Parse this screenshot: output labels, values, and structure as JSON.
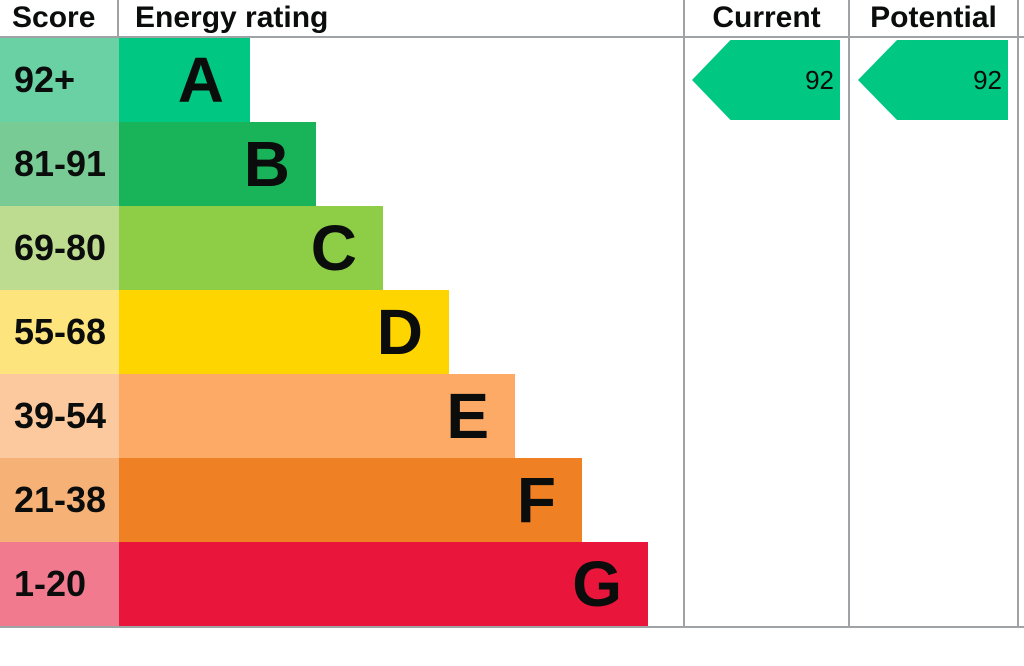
{
  "header": {
    "score": "Score",
    "energy_rating": "Energy rating",
    "current": "Current",
    "potential": "Potential"
  },
  "chart_data": {
    "type": "bar",
    "title": "Energy rating",
    "orientation": "horizontal",
    "columns": [
      "Score",
      "Energy rating",
      "Current",
      "Potential"
    ],
    "bands": [
      {
        "grade": "A",
        "range": "92+",
        "min": 92,
        "color": "#00c781",
        "score_bg": "#6ad1a5"
      },
      {
        "grade": "B",
        "range": "81-91",
        "min": 81,
        "color": "#19b459",
        "score_bg": "#79cb96"
      },
      {
        "grade": "C",
        "range": "69-80",
        "min": 69,
        "color": "#8dce46",
        "score_bg": "#bedc8f"
      },
      {
        "grade": "D",
        "range": "55-68",
        "min": 55,
        "color": "#ffd500",
        "score_bg": "#fde47c"
      },
      {
        "grade": "E",
        "range": "39-54",
        "min": 39,
        "color": "#fcaa65",
        "score_bg": "#fcc99e"
      },
      {
        "grade": "F",
        "range": "21-38",
        "min": 21,
        "color": "#ef8023",
        "score_bg": "#f5b176"
      },
      {
        "grade": "G",
        "range": "1-20",
        "min": 1,
        "color": "#e9153b",
        "score_bg": "#f17a8e"
      }
    ],
    "current": {
      "value": "92",
      "band": "A"
    },
    "potential": {
      "value": "92",
      "band": "A"
    },
    "arrow_color": "#00c781"
  },
  "colors": {
    "line": "#a0a3a5",
    "text": "#0b0c0c",
    "background": "#ffffff"
  }
}
